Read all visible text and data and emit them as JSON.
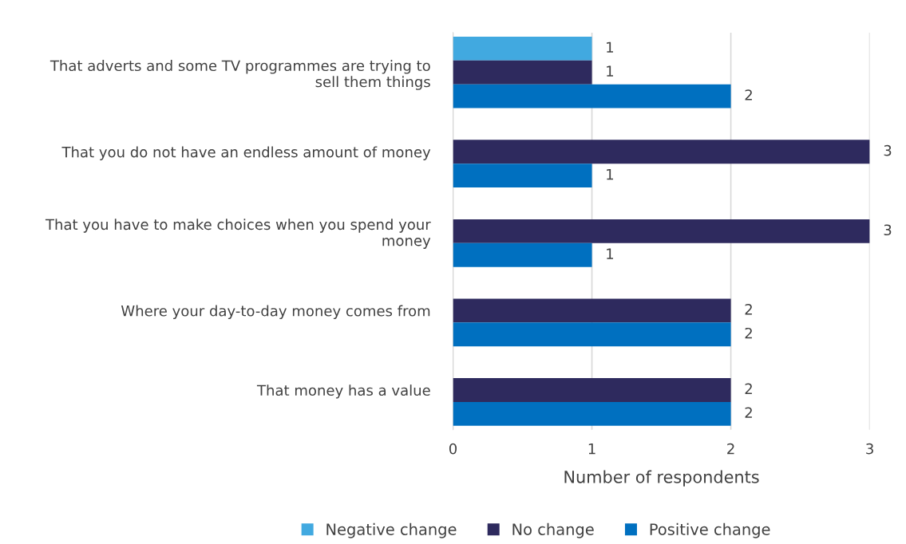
{
  "chart_data": {
    "type": "bar",
    "orientation": "horizontal",
    "xlabel": "Number of respondents",
    "categories": [
      "That adverts and some TV programmes are trying to\nsell them things",
      "That you do not have an endless amount of money",
      "That you have to make choices when you spend your\nmoney",
      "Where your day-to-day money comes from",
      "That money has a value"
    ],
    "series": [
      {
        "name": "Negative change",
        "color": "#41a9e0",
        "values": [
          1,
          null,
          null,
          null,
          null
        ]
      },
      {
        "name": "No change",
        "color": "#2e2a5e",
        "values": [
          1,
          3,
          3,
          2,
          2
        ]
      },
      {
        "name": "Positive change",
        "color": "#0070c0",
        "values": [
          2,
          1,
          1,
          2,
          2
        ]
      }
    ],
    "xlim": [
      0,
      3
    ],
    "xticks": [
      0,
      1,
      2,
      3
    ],
    "grid": "x",
    "legend": "bottom",
    "data_labels": true
  }
}
